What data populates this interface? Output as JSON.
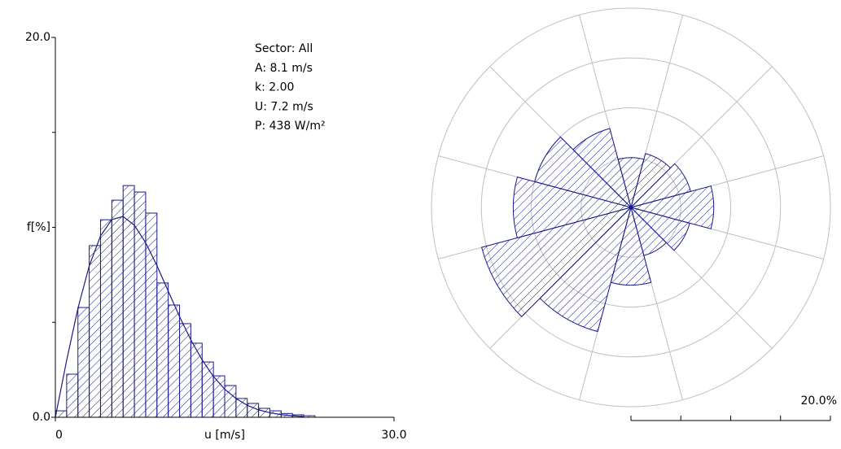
{
  "chart_data": [
    {
      "type": "histogram",
      "annotations": [
        "Sector: All",
        "A: 8.1 m/s",
        "k: 2.00",
        "U: 7.2 m/s",
        "P: 438 W/m²"
      ],
      "xlabel": "u [m/s]",
      "ylabel": "f[%]",
      "bins": [
        0,
        1,
        2,
        3,
        4,
        5,
        6,
        7,
        8,
        9,
        10,
        11,
        12,
        13,
        14,
        15,
        16,
        17,
        18,
        19,
        20,
        21,
        22,
        23
      ],
      "values": [
        0.34,
        2.27,
        5.78,
        9.04,
        10.4,
        11.43,
        12.2,
        11.86,
        10.75,
        7.07,
        5.91,
        4.93,
        3.9,
        2.91,
        2.18,
        1.67,
        0.99,
        0.73,
        0.47,
        0.34,
        0.2,
        0.13,
        0.08
      ],
      "curve": {
        "x": [
          0,
          1,
          2,
          3,
          4,
          5,
          6,
          7,
          8,
          9,
          10,
          11,
          12,
          13,
          14,
          15,
          16,
          17,
          18,
          19,
          20,
          21,
          22
        ],
        "values": [
          0,
          3.0,
          5.74,
          7.97,
          9.55,
          10.41,
          10.57,
          10.11,
          9.19,
          7.98,
          6.64,
          5.3,
          4.08,
          3.02,
          2.15,
          1.48,
          0.99,
          0.63,
          0.39,
          0.24,
          0.14,
          0.08,
          0.04
        ]
      },
      "color": "#1a1a8c",
      "xlim": [
        0,
        30
      ],
      "xticks": [
        0,
        {
          "value": 30,
          "label": "30.0"
        }
      ],
      "ylim": [
        0,
        20
      ],
      "yticks": [
        {
          "value": 0,
          "label": "0.0"
        },
        {
          "value": 20,
          "label": "20.0"
        }
      ],
      "yticks_minor": [
        5,
        10,
        15
      ]
    },
    {
      "type": "rose",
      "categories": [
        null,
        null,
        null,
        null,
        null,
        null,
        null,
        null,
        null,
        null,
        null,
        null
      ],
      "values": [
        5.0,
        5.6,
        6.2,
        8.3,
        6.1,
        5.0,
        7.8,
        12.9,
        15.5,
        11.8,
        10.0,
        8.2
      ],
      "color": "#1a1a8c",
      "rlim": [
        0,
        20
      ],
      "rticks": [
        {
          "value": 20,
          "label": "20.0%"
        }
      ],
      "rticks_minor": [
        5,
        10,
        15
      ],
      "grid": true
    }
  ]
}
